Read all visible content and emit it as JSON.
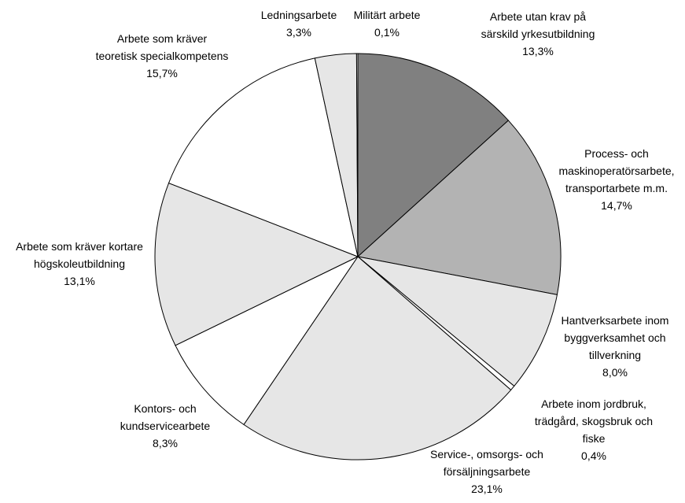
{
  "chart_data": {
    "type": "pie",
    "title": "",
    "start": "12 o'clock",
    "direction": "clockwise",
    "slices": [
      {
        "label_lines": [
          "Arbete utan krav på",
          "särskild yrkesutbildning"
        ],
        "value_label": "13,3%",
        "value": 13.3,
        "color": "#808080"
      },
      {
        "label_lines": [
          "Process- och",
          "maskinoperatörsarbete,",
          "transportarbete m.m."
        ],
        "value_label": "14,7%",
        "value": 14.7,
        "color": "#b3b3b3"
      },
      {
        "label_lines": [
          "Hantverksarbete inom",
          "byggverksamhet och",
          "tillverkning"
        ],
        "value_label": "8,0%",
        "value": 8.0,
        "color": "#e6e6e6"
      },
      {
        "label_lines": [
          "Arbete inom jordbruk,",
          "trädgård, skogsbruk och",
          "fiske"
        ],
        "value_label": "0,4%",
        "value": 0.4,
        "color": "#ffffff"
      },
      {
        "label_lines": [
          "Service-, omsorgs- och",
          "försäljningsarbete"
        ],
        "value_label": "23,1%",
        "value": 23.1,
        "color": "#e6e6e6"
      },
      {
        "label_lines": [
          "Kontors- och",
          "kundservicearbete"
        ],
        "value_label": "8,3%",
        "value": 8.3,
        "color": "#ffffff"
      },
      {
        "label_lines": [
          "Arbete som kräver kortare",
          "högskoleutbildning"
        ],
        "value_label": "13,1%",
        "value": 13.1,
        "color": "#e6e6e6"
      },
      {
        "label_lines": [
          "Arbete som kräver",
          "teoretisk specialkompetens"
        ],
        "value_label": "15,7%",
        "value": 15.7,
        "color": "#ffffff"
      },
      {
        "label_lines": [
          "Ledningsarbete"
        ],
        "value_label": "3,3%",
        "value": 3.3,
        "color": "#e6e6e6"
      },
      {
        "label_lines": [
          "Militärt arbete"
        ],
        "value_label": "0,1%",
        "value": 0.1,
        "color": "#ffffff"
      }
    ]
  }
}
